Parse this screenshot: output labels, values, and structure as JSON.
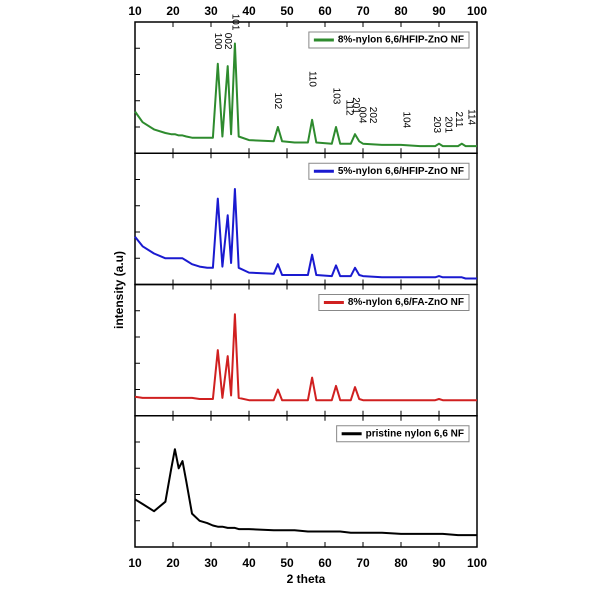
{
  "chart_data": {
    "type": "line",
    "x_label": "2 theta",
    "y_label": "intensity (a.u)",
    "xlim": [
      10,
      100
    ],
    "xticks": [
      10,
      20,
      30,
      40,
      50,
      60,
      70,
      80,
      90,
      100
    ],
    "ylim": [
      0,
      110
    ],
    "x": [
      10,
      12,
      15,
      18,
      19.5,
      20.5,
      21.5,
      22.5,
      23.5,
      25,
      27,
      29,
      30.5,
      31.8,
      33,
      34.4,
      35.3,
      36.3,
      37.3,
      40,
      46.5,
      47.6,
      48.7,
      52,
      55.5,
      56.6,
      57.7,
      61.8,
      62.9,
      64,
      66.8,
      67.9,
      69,
      70,
      75,
      80,
      85,
      89,
      90,
      91,
      95,
      96,
      97,
      100
    ],
    "series": [
      {
        "name": "8%-nylon 6,6/HFIP-ZnO NF",
        "color": "#2e8b2e",
        "values": [
          35,
          26,
          20,
          17,
          16,
          16,
          15,
          15,
          14,
          13,
          13,
          13,
          13,
          75,
          14,
          73,
          16,
          92,
          14,
          11,
          10,
          22,
          10,
          9,
          9,
          28,
          9,
          8,
          22,
          8,
          8,
          16,
          10,
          8,
          7,
          7,
          6,
          6,
          8,
          6,
          6,
          8,
          6,
          6
        ]
      },
      {
        "name": "5%-nylon 6,6/HFIP-ZnO NF",
        "color": "#1a1ad0",
        "values": [
          40,
          32,
          26,
          22,
          22,
          22,
          22,
          22,
          20,
          17,
          15,
          14,
          14,
          72,
          15,
          58,
          18,
          80,
          14,
          10,
          9,
          17,
          8,
          8,
          8,
          25,
          8,
          7,
          16,
          7,
          7,
          14,
          8,
          7,
          6,
          6,
          6,
          6,
          7,
          6,
          6,
          6,
          5,
          5
        ]
      },
      {
        "name": "8%-nylon 6,6/FA-ZnO NF",
        "color": "#d02020",
        "values": [
          16,
          15,
          15,
          15,
          15,
          15,
          15,
          15,
          15,
          15,
          14,
          14,
          14,
          55,
          15,
          50,
          17,
          85,
          15,
          13,
          13,
          22,
          13,
          13,
          13,
          32,
          13,
          13,
          25,
          13,
          13,
          24,
          14,
          13,
          13,
          13,
          13,
          13,
          14,
          13,
          13,
          13,
          13,
          13
        ]
      },
      {
        "name": "pristine nylon 6,6 NF",
        "color": "#000000",
        "values": [
          40,
          36,
          30,
          38,
          65,
          82,
          66,
          72,
          55,
          28,
          22,
          20,
          18,
          17,
          17,
          16,
          16,
          16,
          15,
          15,
          14,
          14,
          14,
          14,
          13,
          13,
          13,
          13,
          13,
          13,
          12,
          12,
          12,
          12,
          12,
          11,
          11,
          11,
          11,
          11,
          10,
          10,
          10,
          10
        ]
      }
    ],
    "annotations": [
      {
        "text": "100",
        "x": 31.8,
        "y": 80
      },
      {
        "text": "002",
        "x": 34.4,
        "y": 80
      },
      {
        "text": "101",
        "x": 36.3,
        "y": 96
      },
      {
        "text": "102",
        "x": 47.6,
        "y": 30
      },
      {
        "text": "110",
        "x": 56.6,
        "y": 48
      },
      {
        "text": "103",
        "x": 62.9,
        "y": 34
      },
      {
        "text": "112",
        "x": 66.4,
        "y": 24
      },
      {
        "text": "201",
        "x": 68.0,
        "y": 26
      },
      {
        "text": "004",
        "x": 69.8,
        "y": 18
      },
      {
        "text": "202",
        "x": 72.6,
        "y": 18
      },
      {
        "text": "104",
        "x": 81.4,
        "y": 14
      },
      {
        "text": "203",
        "x": 89.4,
        "y": 10
      },
      {
        "text": "201",
        "x": 92.4,
        "y": 10
      },
      {
        "text": "211",
        "x": 95.2,
        "y": 14
      },
      {
        "text": "114",
        "x": 98.4,
        "y": 16
      }
    ]
  }
}
